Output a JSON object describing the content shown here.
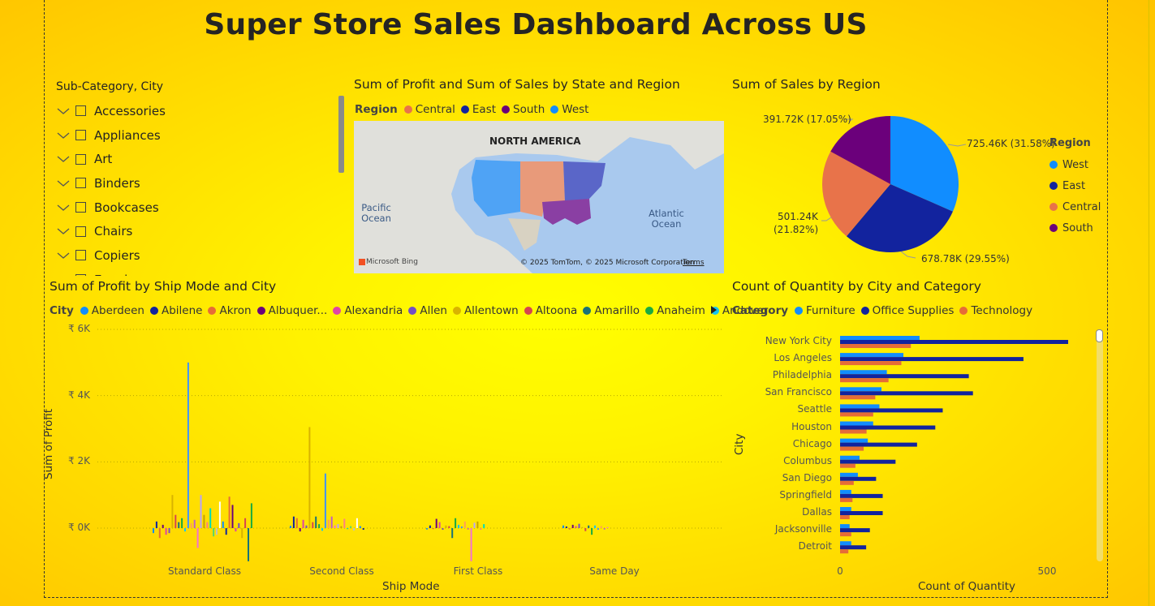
{
  "title": "Super Store Sales Dashboard Across US",
  "slicer": {
    "title": "Sub-Category, City",
    "items": [
      "Accessories",
      "Appliances",
      "Art",
      "Binders",
      "Bookcases",
      "Chairs",
      "Copiers",
      "Envelopes"
    ]
  },
  "map_visual": {
    "title": "Sum of Profit and Sum of Sales by State and Region",
    "legend_title": "Region",
    "legend": [
      {
        "name": "Central",
        "color": "#E8734A"
      },
      {
        "name": "East",
        "color": "#12239E"
      },
      {
        "name": "South",
        "color": "#6B007B"
      },
      {
        "name": "West",
        "color": "#118DFF"
      }
    ],
    "labels": {
      "continent": "NORTH AMERICA",
      "pacific": "Pacific Ocean",
      "atlantic": "Atlantic Ocean",
      "bing": "Microsoft Bing",
      "attribution": "© 2025 TomTom, © 2025 Microsoft Corporation",
      "terms": "Terms"
    }
  },
  "pie_visual": {
    "title": "Sum of Sales by Region",
    "legend_title": "Region",
    "slice_labels": {
      "west": "725.46K (31.58%)",
      "east": "678.78K (29.55%)",
      "central_line1": "501.24K",
      "central_line2": "(21.82%)",
      "south": "391.72K (17.05%)"
    }
  },
  "ship_visual": {
    "title": "Sum of Profit by Ship Mode and City",
    "legend_title": "City",
    "legend": [
      {
        "name": "Aberdeen",
        "color": "#118DFF"
      },
      {
        "name": "Abilene",
        "color": "#12239E"
      },
      {
        "name": "Akron",
        "color": "#E66C37"
      },
      {
        "name": "Albuquer...",
        "color": "#6B007B"
      },
      {
        "name": "Alexandria",
        "color": "#E044A7"
      },
      {
        "name": "Allen",
        "color": "#744EC2"
      },
      {
        "name": "Allentown",
        "color": "#D9B300"
      },
      {
        "name": "Altoona",
        "color": "#D64550"
      },
      {
        "name": "Amarillo",
        "color": "#197278"
      },
      {
        "name": "Anaheim",
        "color": "#1AAB40"
      },
      {
        "name": "Andover",
        "color": "#15C6F4"
      }
    ],
    "xlabel": "Ship Mode",
    "ylabel": "Sum of Profit",
    "yticks": [
      "₹ 6K",
      "₹ 4K",
      "₹ 2K",
      "₹ 0K"
    ]
  },
  "bar_visual": {
    "title": "Count of Quantity by City and Category",
    "legend_title": "Category",
    "xtick_labels": [
      "0",
      "500"
    ]
  },
  "chart_data": [
    {
      "type": "pie",
      "title": "Sum of Sales by Region",
      "legend_title": "Region",
      "categories": [
        "West",
        "East",
        "Central",
        "South"
      ],
      "values": [
        725.46,
        678.78,
        501.24,
        391.72
      ],
      "unit": "K",
      "percents": [
        31.58,
        29.55,
        21.82,
        17.05
      ],
      "colors": [
        "#118DFF",
        "#12239E",
        "#E8734A",
        "#6B007B"
      ],
      "legend_position": "right"
    },
    {
      "type": "bar",
      "title": "Sum of Profit by Ship Mode and City",
      "xlabel": "Ship Mode",
      "ylabel": "Sum of Profit",
      "categories": [
        "Standard Class",
        "Second Class",
        "First Class",
        "Same Day"
      ],
      "ylim": [
        -1000,
        6000
      ],
      "yticks": [
        0,
        2000,
        4000,
        6000
      ],
      "grid": true,
      "legend_position": "top",
      "palette": [
        "#118DFF",
        "#12239E",
        "#E66C37",
        "#6B007B",
        "#E044A7",
        "#744EC2",
        "#D9B300",
        "#D64550",
        "#197278",
        "#1AAB40",
        "#15C6F4",
        "#4092FF",
        "#FFA058",
        "#BE5DC9",
        "#F472D0",
        "#B5A1FF",
        "#C4A200",
        "#FF8080",
        "#00DBBC",
        "#5BD667",
        "#C0C0C0",
        "#FFFFFF"
      ],
      "series_values": [
        [
          -150,
          200,
          -300,
          100,
          -200,
          -150,
          1000,
          400,
          180,
          300,
          -100,
          5000,
          150,
          250,
          -600,
          1000,
          400,
          180,
          600,
          -250,
          -200,
          800,
          200,
          -200,
          950,
          700,
          -100,
          150,
          -300,
          300,
          -1000,
          750
        ],
        [
          70,
          350,
          300,
          -100,
          250,
          80,
          3050,
          180,
          350,
          120,
          -80,
          1650,
          250,
          350,
          80,
          120,
          60,
          280,
          -30,
          60,
          -70,
          300,
          60,
          -50
        ],
        [
          -40,
          80,
          -30,
          280,
          180,
          -50,
          80,
          60,
          -300,
          300,
          100,
          50,
          200,
          -40,
          -1000,
          160,
          200,
          -50,
          120
        ],
        [
          80,
          50,
          -40,
          100,
          60,
          130,
          30,
          -90,
          80,
          -200,
          80,
          -50,
          60,
          -40,
          30
        ]
      ]
    },
    {
      "type": "bar",
      "orientation": "horizontal",
      "title": "Count of Quantity by City and Category",
      "ylabel": "City",
      "xlabel": "Count of Quantity",
      "categories": [
        "New York City",
        "Los Angeles",
        "Philadelphia",
        "San Francisco",
        "Seattle",
        "Houston",
        "Chicago",
        "Columbus",
        "San Diego",
        "Springfield",
        "Dallas",
        "Jacksonville",
        "Detroit"
      ],
      "series": [
        {
          "name": "Furniture",
          "color": "#118DFF",
          "values": [
            192,
            153,
            113,
            100,
            95,
            80,
            67,
            47,
            43,
            27,
            27,
            23,
            27
          ]
        },
        {
          "name": "Office Supplies",
          "color": "#12239E",
          "values": [
            551,
            443,
            311,
            321,
            248,
            230,
            186,
            134,
            87,
            103,
            103,
            72,
            63
          ]
        },
        {
          "name": "Technology",
          "color": "#E66C37",
          "values": [
            171,
            148,
            117,
            85,
            80,
            64,
            57,
            37,
            33,
            30,
            23,
            27,
            20
          ]
        }
      ],
      "xlim": [
        0,
        600
      ],
      "xticks": [
        0,
        500
      ],
      "legend_position": "top"
    }
  ]
}
